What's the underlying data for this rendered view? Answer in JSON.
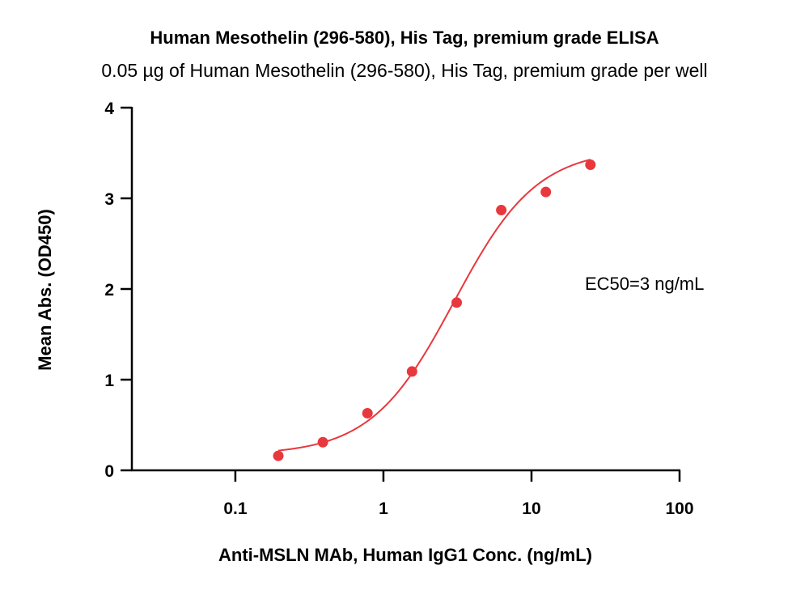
{
  "chart_data": {
    "type": "scatter",
    "title": "Human Mesothelin (296-580), His Tag, premium grade ELISA",
    "subtitle": "0.05 µg of Human Mesothelin (296-580), His Tag, premium grade per well",
    "xlabel": "Anti-MSLN MAb, Human IgG1 Conc. (ng/mL)",
    "ylabel": "Mean Abs. (OD450)",
    "x_scale": "log",
    "xlim": [
      0.02,
      100
    ],
    "ylim": [
      0,
      4
    ],
    "x_ticks": [
      0.1,
      1,
      10,
      100
    ],
    "x_tick_labels": [
      "0.1",
      "1",
      "10",
      "100"
    ],
    "y_ticks": [
      0,
      1,
      2,
      3,
      4
    ],
    "y_tick_labels": [
      "0",
      "1",
      "2",
      "3",
      "4"
    ],
    "grid": false,
    "annotation": "EC50=3 ng/mL",
    "color": "#e8383d",
    "series": [
      {
        "x": [
          0.195,
          0.39,
          0.78,
          1.56,
          3.125,
          6.25,
          12.5,
          25
        ],
        "y": [
          0.16,
          0.31,
          0.63,
          1.09,
          1.85,
          2.87,
          3.07,
          3.37
        ]
      }
    ],
    "fit": {
      "model": "4PL",
      "bottom": 0.17,
      "top": 3.55,
      "ec50": 3,
      "hill": 1.55
    }
  }
}
